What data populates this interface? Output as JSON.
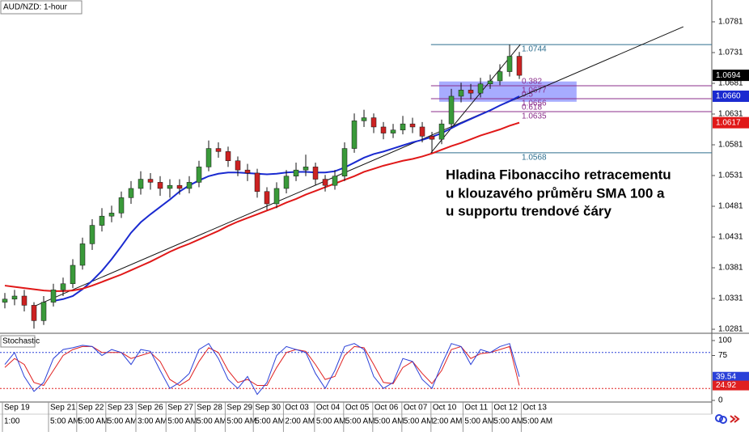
{
  "chart_data": {
    "type": "candlestick",
    "title": "AUD/NZD: 1-hour",
    "annotation": [
      "Hladina Fibonacciho retracementu",
      "u klouzavého průměru SMA 100 a",
      "u supportu trendové čáry"
    ],
    "xlim": [
      0,
      73.33
    ],
    "ylim": [
      1.02771,
      1.08165
    ],
    "yticks": [
      1.0281,
      1.0331,
      1.0381,
      1.0431,
      1.0481,
      1.0531,
      1.0581,
      1.0631,
      1.0681,
      1.0731,
      1.0781
    ],
    "xticks": [
      {
        "value": 0.25,
        "label": "Sep 19"
      },
      {
        "value": 5,
        "label": "Sep 21"
      },
      {
        "value": 7.9,
        "label": "Sep 22"
      },
      {
        "value": 10.9,
        "label": "Sep 23"
      },
      {
        "value": 14,
        "label": "Sep 26"
      },
      {
        "value": 17.1,
        "label": "Sep 27"
      },
      {
        "value": 20.1,
        "label": "Sep 28"
      },
      {
        "value": 23.2,
        "label": "Sep 29"
      },
      {
        "value": 26.1,
        "label": "Sep 30"
      },
      {
        "value": 29.2,
        "label": "Oct 03"
      },
      {
        "value": 32.4,
        "label": "Oct 04"
      },
      {
        "value": 35.4,
        "label": "Oct 05"
      },
      {
        "value": 38.4,
        "label": "Oct 06"
      },
      {
        "value": 41.4,
        "label": "Oct 07"
      },
      {
        "value": 44.4,
        "label": "Oct 10"
      },
      {
        "value": 47.7,
        "label": "Oct 11"
      },
      {
        "value": 50.7,
        "label": "Oct 12"
      },
      {
        "value": 53.7,
        "label": "Oct 13"
      }
    ],
    "time_labels": [
      "1:00",
      "5:00 AM",
      "5:00 AM",
      "5:00 AM",
      "3:00 AM",
      "5:00 AM",
      "5:00 AM",
      "5:00 AM",
      "5:00 AM",
      "2:00 AM",
      "5:00 AM",
      "5:00 AM",
      "5:00 AM",
      "5:00 AM",
      "2:00 AM",
      "5:00 AM",
      "5:00 AM",
      "5:00 AM"
    ],
    "up_color": "#3a9a3a",
    "down_color": "#cc2222",
    "opens": [
      1.0325,
      1.033,
      1.0335,
      1.032,
      1.0295,
      1.0325,
      1.0345,
      1.0355,
      1.0385,
      1.042,
      1.045,
      1.0465,
      1.047,
      1.0495,
      1.051,
      1.0525,
      1.052,
      1.051,
      1.0515,
      1.051,
      1.052,
      1.0545,
      1.0575,
      1.057,
      1.0555,
      1.054,
      1.0535,
      1.0505,
      1.0485,
      1.051,
      1.053,
      1.054,
      1.0545,
      1.0525,
      1.0515,
      1.053,
      1.0575,
      1.062,
      1.0625,
      1.061,
      1.06,
      1.0605,
      1.0615,
      1.061,
      1.0595,
      1.059,
      1.0615,
      1.066,
      1.067,
      1.0665,
      1.068,
      1.0685,
      1.07,
      1.0725
    ],
    "highs": [
      1.034,
      1.0345,
      1.0345,
      1.0325,
      1.0335,
      1.0355,
      1.0365,
      1.0395,
      1.043,
      1.046,
      1.0478,
      1.0482,
      1.0505,
      1.0522,
      1.0538,
      1.0535,
      1.053,
      1.0525,
      1.0525,
      1.053,
      1.0555,
      1.0588,
      1.0585,
      1.0578,
      1.0562,
      1.055,
      1.0542,
      1.0512,
      1.052,
      1.054,
      1.0552,
      1.0565,
      1.0552,
      1.0532,
      1.054,
      1.0585,
      1.0632,
      1.0638,
      1.0632,
      1.0618,
      1.0615,
      1.0628,
      1.0625,
      1.0618,
      1.0602,
      1.0622,
      1.0672,
      1.0682,
      1.068,
      1.069,
      1.0695,
      1.0712,
      1.0744,
      1.0732
    ],
    "lows": [
      1.0315,
      1.032,
      1.031,
      1.0282,
      1.0288,
      1.0318,
      1.0335,
      1.0348,
      1.0378,
      1.041,
      1.044,
      1.0455,
      1.0462,
      1.0485,
      1.05,
      1.0508,
      1.0498,
      1.0495,
      1.05,
      1.0502,
      1.0512,
      1.0538,
      1.056,
      1.0545,
      1.053,
      1.0522,
      1.0495,
      1.0475,
      1.0478,
      1.0502,
      1.0522,
      1.053,
      1.0515,
      1.0505,
      1.0508,
      1.0522,
      1.0568,
      1.061,
      1.06,
      1.059,
      1.0592,
      1.0598,
      1.06,
      1.0585,
      1.0568,
      1.0582,
      1.0608,
      1.065,
      1.0655,
      1.0658,
      1.0672,
      1.0678,
      1.0692,
      1.0688
    ],
    "closes": [
      1.033,
      1.0335,
      1.032,
      1.0295,
      1.0325,
      1.0345,
      1.0355,
      1.0385,
      1.042,
      1.045,
      1.0465,
      1.047,
      1.0495,
      1.051,
      1.0525,
      1.052,
      1.051,
      1.0515,
      1.051,
      1.052,
      1.0545,
      1.0575,
      1.057,
      1.0555,
      1.054,
      1.0535,
      1.0505,
      1.0485,
      1.051,
      1.053,
      1.054,
      1.0545,
      1.0525,
      1.0515,
      1.053,
      1.0575,
      1.062,
      1.0625,
      1.061,
      1.06,
      1.0605,
      1.0615,
      1.061,
      1.0595,
      1.059,
      1.0615,
      1.066,
      1.067,
      1.0665,
      1.068,
      1.0685,
      1.07,
      1.0725,
      1.0694
    ],
    "series": [
      {
        "color": "#1a2ad0",
        "values": [
          null,
          null,
          null,
          null,
          null,
          1.0327,
          1.033,
          1.0335,
          1.0346,
          1.036,
          1.0376,
          1.0395,
          1.0416,
          1.0438,
          1.0455,
          1.0468,
          1.048,
          1.0492,
          1.0505,
          1.0515,
          1.0523,
          1.053,
          1.0534,
          1.0536,
          1.0536,
          1.0535,
          1.0534,
          1.0533,
          1.0534,
          1.0536,
          1.0537,
          1.0537,
          1.0536,
          1.0536,
          1.0538,
          1.0544,
          1.0552,
          1.056,
          1.0566,
          1.057,
          1.0575,
          1.058,
          1.0585,
          1.0589,
          1.0594,
          1.06,
          1.0608,
          1.0616,
          1.0623,
          1.063,
          1.0637,
          1.0645,
          1.0652,
          1.066
        ]
      },
      {
        "color": "#e01818",
        "values": [
          1.0352,
          1.035,
          1.0348,
          1.0346,
          1.0344,
          1.0343,
          1.0343,
          1.0344,
          1.0347,
          1.0352,
          1.0358,
          1.0364,
          1.037,
          1.0377,
          1.0384,
          1.0391,
          1.0399,
          1.0407,
          1.0414,
          1.042,
          1.0427,
          1.0434,
          1.0441,
          1.0449,
          1.0456,
          1.0462,
          1.0468,
          1.0474,
          1.048,
          1.0487,
          1.0493,
          1.05,
          1.0506,
          1.0512,
          1.0518,
          1.0524,
          1.053,
          1.0537,
          1.0542,
          1.0547,
          1.0551,
          1.0555,
          1.0558,
          1.0562,
          1.0567,
          1.0573,
          1.0579,
          1.0584,
          1.059,
          1.0596,
          1.0601,
          1.0606,
          1.0612,
          1.0617
        ]
      }
    ],
    "markers": [
      {
        "value": 1.0694,
        "label": "1.0694",
        "color": "#000000"
      },
      {
        "value": 1.066,
        "label": "1.0660",
        "color": "#1a2ad0"
      },
      {
        "value": 1.0617,
        "label": "1.0617",
        "color": "#e01818"
      }
    ],
    "trendlines": [
      {
        "x": [
          3.33,
          70.4
        ],
        "y": [
          1.0317,
          1.0773
        ]
      },
      {
        "x": [
          44.4,
          53.6
        ],
        "y": [
          1.0568,
          1.0744
        ]
      }
    ],
    "zone": {
      "x": [
        45.25,
        59.4
      ],
      "y": [
        1.0651,
        1.0684
      ],
      "color": "#8a90ff"
    },
    "fib": {
      "x_start": 44.4,
      "top": 1.0744,
      "bottom": 1.0568,
      "edge_color": "#2d6e8e",
      "level_color": "#8b2f8b",
      "levels": [
        {
          "ratio": "0.382",
          "price": 1.0677
        },
        {
          "ratio": "0.5",
          "price": 1.0656
        },
        {
          "ratio": "0.618",
          "price": 1.0635
        }
      ]
    },
    "stochastic": {
      "title": "Stochastic",
      "ylim": [
        -2.7,
        108.1
      ],
      "yticks": [
        0,
        75,
        100
      ],
      "levels": [
        20,
        80
      ],
      "k_color": "#2a40d8",
      "d_color": "#e02020",
      "k": [
        60,
        80,
        40,
        15,
        30,
        70,
        85,
        88,
        92,
        90,
        75,
        85,
        80,
        60,
        85,
        82,
        50,
        20,
        30,
        45,
        85,
        95,
        70,
        35,
        20,
        40,
        10,
        30,
        75,
        90,
        85,
        80,
        45,
        20,
        50,
        90,
        95,
        85,
        40,
        20,
        30,
        70,
        65,
        35,
        20,
        60,
        95,
        90,
        60,
        85,
        80,
        90,
        95,
        39.54
      ],
      "d": [
        55,
        70,
        60,
        30,
        25,
        50,
        75,
        85,
        90,
        90,
        80,
        80,
        80,
        70,
        75,
        80,
        65,
        35,
        25,
        35,
        65,
        88,
        80,
        50,
        30,
        35,
        25,
        25,
        55,
        80,
        85,
        82,
        60,
        35,
        40,
        75,
        90,
        88,
        60,
        30,
        28,
        55,
        65,
        45,
        28,
        50,
        85,
        90,
        70,
        78,
        80,
        85,
        90,
        24.92
      ]
    }
  }
}
